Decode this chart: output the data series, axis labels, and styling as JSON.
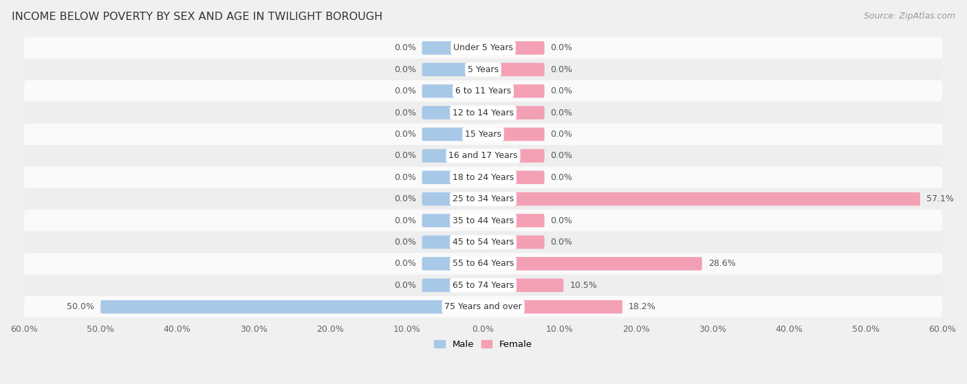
{
  "title": "INCOME BELOW POVERTY BY SEX AND AGE IN TWILIGHT BOROUGH",
  "source": "Source: ZipAtlas.com",
  "categories": [
    "Under 5 Years",
    "5 Years",
    "6 to 11 Years",
    "12 to 14 Years",
    "15 Years",
    "16 and 17 Years",
    "18 to 24 Years",
    "25 to 34 Years",
    "35 to 44 Years",
    "45 to 54 Years",
    "55 to 64 Years",
    "65 to 74 Years",
    "75 Years and over"
  ],
  "male": [
    0.0,
    0.0,
    0.0,
    0.0,
    0.0,
    0.0,
    0.0,
    0.0,
    0.0,
    0.0,
    0.0,
    0.0,
    50.0
  ],
  "female": [
    0.0,
    0.0,
    0.0,
    0.0,
    0.0,
    0.0,
    0.0,
    57.1,
    0.0,
    0.0,
    28.6,
    10.5,
    18.2
  ],
  "male_color": "#a8c8e8",
  "female_color": "#f4a0b4",
  "axis_limit": 60.0,
  "bg_color": "#f0f0f0",
  "row_bg_light": "#fafafa",
  "row_bg_dark": "#eeeeee",
  "title_fontsize": 11.5,
  "label_fontsize": 9,
  "tick_fontsize": 9,
  "source_fontsize": 9,
  "bar_height": 0.62,
  "min_bar_width": 8.0
}
